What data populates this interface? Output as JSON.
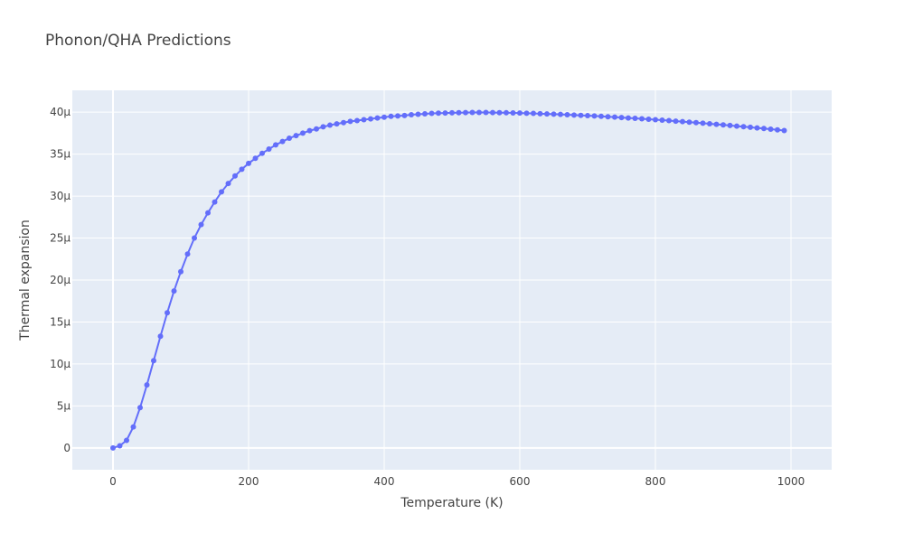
{
  "chart_data": {
    "type": "line",
    "title": "Phonon/QHA Predictions",
    "xlabel": "Temperature (K)",
    "ylabel": "Thermal expansion",
    "xlim": [
      -60,
      1060
    ],
    "ylim": [
      -2.6,
      42.6
    ],
    "x_ticks": [
      0,
      200,
      400,
      600,
      800,
      1000
    ],
    "y_ticks": [
      0,
      5,
      10,
      15,
      20,
      25,
      30,
      35,
      40
    ],
    "y_tick_labels": [
      "0",
      "5µ",
      "10µ",
      "15µ",
      "20µ",
      "25µ",
      "30µ",
      "35µ",
      "40µ"
    ],
    "y_unit": "µ",
    "grid": true,
    "marker": "circle",
    "line_color": "#636efa",
    "plot_bg": "#e5ecf6",
    "series": [
      {
        "x": [
          0,
          10,
          20,
          30,
          40,
          50,
          60,
          70,
          80,
          90,
          100,
          110,
          120,
          130,
          140,
          150,
          160,
          170,
          180,
          190,
          200,
          210,
          220,
          230,
          240,
          250,
          260,
          270,
          280,
          290,
          300,
          310,
          320,
          330,
          340,
          350,
          360,
          370,
          380,
          390,
          400,
          410,
          420,
          430,
          440,
          450,
          460,
          470,
          480,
          490,
          500,
          510,
          520,
          530,
          540,
          550,
          560,
          570,
          580,
          590,
          600,
          610,
          620,
          630,
          640,
          650,
          660,
          670,
          680,
          690,
          700,
          710,
          720,
          730,
          740,
          750,
          760,
          770,
          780,
          790,
          800,
          810,
          820,
          830,
          840,
          850,
          860,
          870,
          880,
          890,
          900,
          910,
          920,
          930,
          940,
          950,
          960,
          970,
          980,
          990
        ],
        "values": [
          0,
          0.25,
          0.9,
          2.5,
          4.8,
          7.5,
          10.4,
          13.3,
          16.1,
          18.7,
          21.0,
          23.1,
          25.0,
          26.6,
          28.0,
          29.3,
          30.5,
          31.5,
          32.4,
          33.2,
          33.9,
          34.5,
          35.1,
          35.6,
          36.1,
          36.5,
          36.9,
          37.2,
          37.5,
          37.8,
          38.0,
          38.25,
          38.45,
          38.6,
          38.75,
          38.9,
          39.0,
          39.1,
          39.2,
          39.3,
          39.4,
          39.5,
          39.55,
          39.6,
          39.7,
          39.75,
          39.8,
          39.85,
          39.88,
          39.9,
          39.92,
          39.94,
          39.95,
          39.96,
          39.96,
          39.96,
          39.95,
          39.94,
          39.93,
          39.91,
          39.89,
          39.87,
          39.85,
          39.82,
          39.79,
          39.76,
          39.73,
          39.69,
          39.66,
          39.62,
          39.58,
          39.54,
          39.5,
          39.45,
          39.41,
          39.36,
          39.31,
          39.26,
          39.21,
          39.16,
          39.1,
          39.05,
          38.99,
          38.93,
          38.87,
          38.81,
          38.75,
          38.68,
          38.62,
          38.55,
          38.48,
          38.41,
          38.34,
          38.27,
          38.2,
          38.12,
          38.05,
          37.97,
          37.89,
          37.81
        ]
      }
    ]
  }
}
